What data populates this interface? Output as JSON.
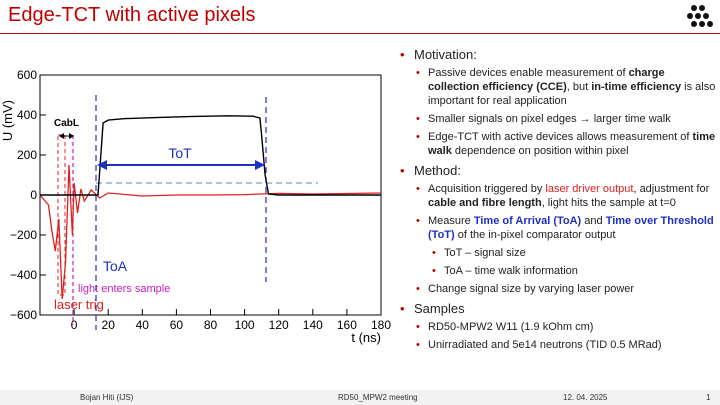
{
  "slide": {
    "title": "Edge-TCT with active pixels"
  },
  "plot": {
    "ylabel": "U (mV)",
    "xlabel": "t (ns)",
    "y_ticks": [
      "600",
      "400",
      "200",
      "0",
      "−200",
      "−400",
      "−600"
    ],
    "x_ticks": [
      "0",
      "20",
      "40",
      "60",
      "80",
      "100",
      "120",
      "140",
      "160",
      "180"
    ],
    "annotations": {
      "cabl": "CabL",
      "tot": "ToT",
      "toa": "ToA",
      "light": "light enters sample",
      "laser": "laser trig"
    },
    "colors": {
      "signal": "#000000",
      "laser_trace": "#e02020",
      "tot_arrow": "#1f2fc0",
      "light_marker": "#c020c0"
    }
  },
  "chart_data": {
    "type": "line",
    "xlabel": "t (ns)",
    "ylabel": "U (mV)",
    "xlim": [
      -20,
      180
    ],
    "ylim": [
      -600,
      600
    ],
    "series": [
      {
        "x": [
          -20,
          -5,
          10,
          14,
          15,
          17,
          20,
          30,
          50,
          70,
          90,
          105,
          109,
          110,
          112,
          114,
          120,
          150,
          180
        ],
        "values": [
          0,
          0,
          0,
          0,
          120,
          360,
          375,
          382,
          388,
          393,
          396,
          394,
          385,
          300,
          100,
          5,
          0,
          0,
          0
        ]
      },
      {
        "x": [
          -20,
          -15,
          -13,
          -11,
          -9,
          -7,
          -5,
          -3,
          -1,
          0,
          2,
          4,
          6,
          10,
          15,
          20,
          40,
          60,
          80,
          100,
          120,
          140,
          180
        ],
        "values": [
          0,
          -50,
          -180,
          -280,
          -120,
          -520,
          -330,
          150,
          -200,
          60,
          -90,
          30,
          -30,
          25,
          -15,
          10,
          -5,
          0,
          0,
          2,
          8,
          5,
          10
        ]
      }
    ]
  },
  "right": {
    "motivation": "Motivation:",
    "m1_a": "Passive devices enable measurement of ",
    "m1_b": "charge collection efficiency (CCE)",
    "m1_c": ", but ",
    "m1_d": "in-time efficiency",
    "m1_e": " is also important for real application",
    "m2": "Smaller signals on pixel edges → larger time walk",
    "m3_a": "Edge-TCT with active devices allows measurement of ",
    "m3_b": "time walk",
    "m3_c": " dependence on position within pixel",
    "method": "Method:",
    "d1_a": "Acquisition triggered by ",
    "d1_b": "laser driver output",
    "d1_c": ", adjustment for ",
    "d1_d": "cable and fibre length",
    "d1_e": ", light hits the sample at t=0",
    "d2_a": "Measure ",
    "d2_b": "Time of Arrival (ToA)",
    "d2_c": " and ",
    "d2_d": "Time over Threshold (ToT)",
    "d2_e": " of the in-pixel comparator output",
    "d2_s1": "ToT – signal size",
    "d2_s2": "ToA – time walk information",
    "d3": "Change signal size by varying laser power",
    "samples": "Samples",
    "s1": "RD50-MPW2 W11 (1.9 kOhm cm)",
    "s2": "Unirradiated and 5e14 neutrons  (TID 0.5 MRad)"
  },
  "footer": {
    "author": "Bojan Hiti (IJS)",
    "meeting": "RD50_MPW2 meeting",
    "date": "12. 04. 2025",
    "page": "1"
  }
}
